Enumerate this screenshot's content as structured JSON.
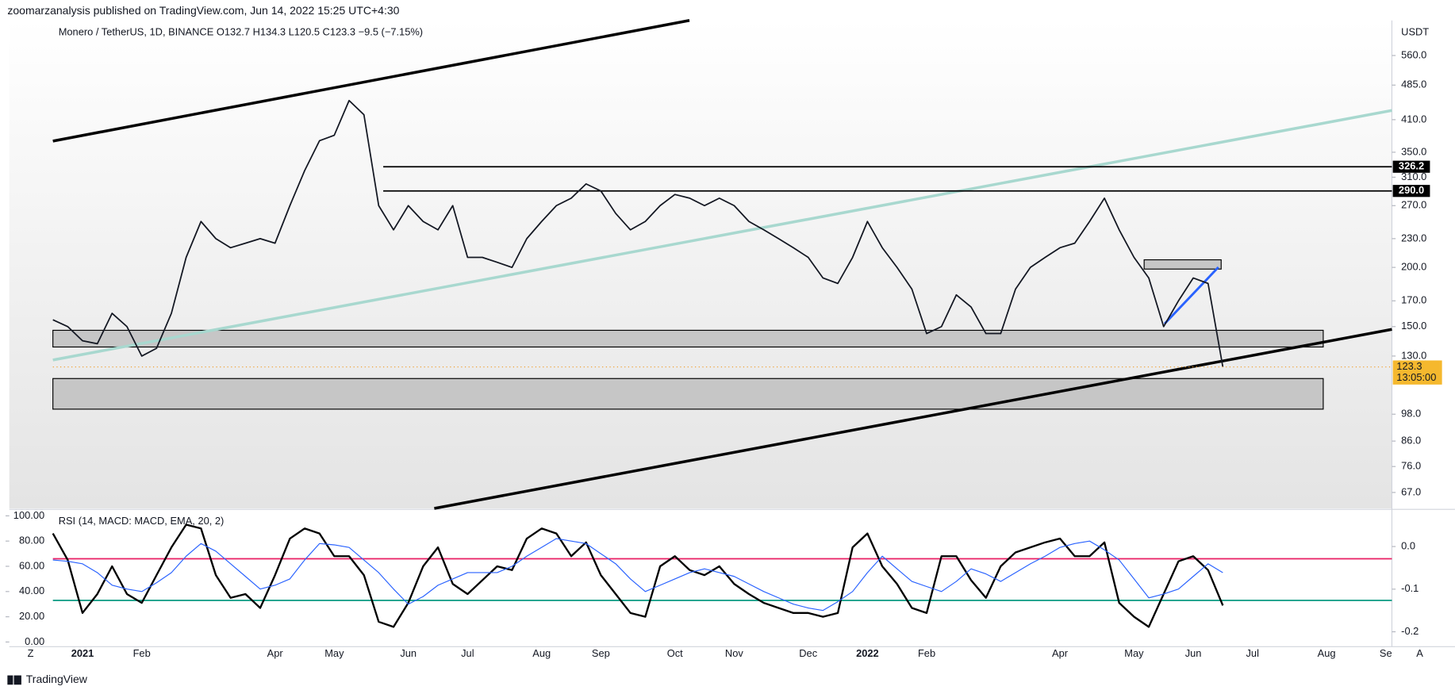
{
  "header": "zoomarzanalysis published on TradingView.com, Jun 14, 2022 15:25 UTC+4:30",
  "footer": "TradingView",
  "chart_data": [
    {
      "type": "line",
      "title": "Monero / TetherUS, 1D, BINANCE  O132.7  H134.3  L120.5  C123.3  −9.5 (−7.15%)",
      "y_unit": "USDT",
      "axis_buttons": [
        "Z",
        "A"
      ],
      "categories": [
        null,
        null,
        "2021",
        null,
        null,
        null,
        "Feb",
        null,
        null,
        null,
        null,
        null,
        null,
        null,
        null,
        "Apr",
        null,
        null,
        null,
        "May",
        null,
        null,
        null,
        null,
        "Jun",
        null,
        null,
        null,
        "Jul",
        null,
        null,
        null,
        null,
        "Aug",
        null,
        null,
        null,
        "Sep",
        null,
        null,
        null,
        null,
        "Oct",
        null,
        null,
        null,
        "Nov",
        null,
        null,
        null,
        null,
        "Dec",
        null,
        null,
        null,
        "2022",
        null,
        null,
        null,
        "Feb",
        null,
        null,
        null,
        null,
        null,
        null,
        null,
        null,
        "Apr",
        null,
        null,
        null,
        null,
        "May",
        null,
        null,
        null,
        "Jun",
        null,
        null,
        null,
        "Jul",
        null,
        null,
        null,
        null,
        "Aug",
        null,
        null,
        null,
        "Se"
      ],
      "color": "#131722",
      "values": [
        155,
        150,
        140,
        138,
        160,
        150,
        130,
        135,
        160,
        210,
        250,
        230,
        220,
        225,
        230,
        225,
        270,
        320,
        370,
        380,
        450,
        420,
        270,
        240,
        270,
        250,
        240,
        270,
        210,
        210,
        205,
        200,
        230,
        250,
        270,
        280,
        300,
        290,
        260,
        240,
        250,
        270,
        285,
        280,
        270,
        280,
        270,
        250,
        240,
        230,
        220,
        210,
        190,
        185,
        210,
        250,
        220,
        200,
        180,
        145,
        150,
        175,
        165,
        145,
        145,
        180,
        200,
        210,
        220,
        225,
        250,
        280,
        240,
        210,
        190,
        150,
        170,
        190,
        185,
        123.3,
        null,
        null,
        null,
        null,
        null,
        null,
        null,
        null,
        null,
        null,
        null
      ],
      "log_scale": true,
      "ylim": [
        62,
        664
      ],
      "yticks": [
        {
          "value": 560,
          "label": "560.0"
        },
        {
          "value": 485,
          "label": "485.0"
        },
        {
          "value": 410,
          "label": "410.0"
        },
        {
          "value": 350,
          "label": "350.0"
        },
        {
          "value": 310,
          "label": "310.0"
        },
        {
          "value": 270,
          "label": "270.0"
        },
        {
          "value": 230,
          "label": "230.0"
        },
        {
          "value": 200,
          "label": "200.0"
        },
        {
          "value": 170,
          "label": "170.0"
        },
        {
          "value": 150,
          "label": "150.0"
        },
        {
          "value": 130,
          "label": "130.0"
        },
        {
          "value": 98,
          "label": "98.0"
        },
        {
          "value": 86,
          "label": "86.0"
        },
        {
          "value": 76,
          "label": "76.0"
        },
        {
          "value": 67,
          "label": "67.0"
        }
      ],
      "levels": [
        {
          "value": 326.2,
          "label": "326.2"
        },
        {
          "value": 290,
          "label": "290.0"
        }
      ],
      "countdown": "13:05:00"
    },
    {
      "type": "line",
      "title": "RSI (14, MACD: MACD, EMA, 20, 2)",
      "series": [
        {
          "color": "#000000",
          "values": [
            86,
            65,
            23,
            38,
            60,
            38,
            31,
            53,
            75,
            93,
            90,
            53,
            35,
            38,
            27,
            53,
            82,
            90,
            86,
            68,
            68,
            53,
            16,
            12,
            31,
            60,
            75,
            46,
            38,
            49,
            60,
            57,
            82,
            90,
            86,
            68,
            79,
            53,
            38,
            23,
            20,
            60,
            68,
            57,
            53,
            60,
            46,
            38,
            31,
            27,
            23,
            23,
            20,
            23,
            75,
            86,
            60,
            46,
            27,
            23,
            68,
            68,
            49,
            35,
            60,
            71,
            75,
            79,
            82,
            68,
            68,
            79,
            31,
            20,
            12,
            38,
            64,
            68,
            57,
            29,
            null,
            null,
            null,
            null,
            null,
            null,
            null,
            null,
            null,
            null,
            null
          ]
        },
        {
          "color": "#2962ff",
          "values": [
            65,
            64,
            62,
            55,
            45,
            42,
            40,
            47,
            55,
            68,
            78,
            72,
            62,
            52,
            42,
            45,
            50,
            65,
            78,
            77,
            75,
            65,
            55,
            42,
            30,
            36,
            45,
            50,
            55,
            55,
            55,
            60,
            68,
            75,
            82,
            80,
            78,
            70,
            62,
            50,
            40,
            45,
            50,
            55,
            58,
            55,
            52,
            46,
            40,
            35,
            30,
            27,
            25,
            32,
            40,
            55,
            68,
            58,
            48,
            44,
            40,
            48,
            58,
            54,
            48,
            55,
            62,
            68,
            75,
            78,
            80,
            73,
            65,
            50,
            35,
            38,
            42,
            52,
            62,
            55,
            null,
            null,
            null,
            null,
            null,
            null,
            null,
            null,
            null,
            null,
            null
          ]
        }
      ],
      "ylim": [
        0,
        100
      ],
      "yticks": [
        {
          "value": 100,
          "label": "100.00"
        },
        {
          "value": 80,
          "label": "80.00"
        },
        {
          "value": 60,
          "label": "60.00"
        },
        {
          "value": 40,
          "label": "40.00"
        },
        {
          "value": 20,
          "label": "20.00"
        },
        {
          "value": 0,
          "label": "0.00"
        }
      ],
      "y2lim": [
        -0.224,
        0.072
      ],
      "y2ticks": [
        {
          "value": 0,
          "label": "0.0"
        },
        -0.1,
        -0.2
      ],
      "levels": [
        {
          "value": 66,
          "color": "#e91e63"
        },
        {
          "value": 33,
          "color": "#089981"
        }
      ]
    }
  ]
}
